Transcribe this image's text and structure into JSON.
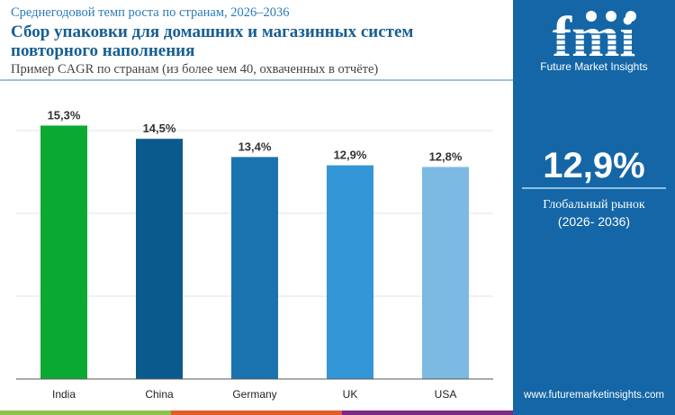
{
  "header": {
    "supertitle": "Среднегодовой темп роста по странам, 2026–2036",
    "title": "Сбор упаковки для домашних и магазинных систем повторного наполнения",
    "subtitle": "Пример CAGR по странам (из более чем 40, охваченных в отчёте)"
  },
  "sidebar": {
    "logo_text": "fmi",
    "brand": "Future Market Insights",
    "value": "12,9%",
    "label": "Глобальный рынок",
    "period": "(2026- 2036)",
    "url": "www.futuremarketinsights.com",
    "bg_color": "#1466a6"
  },
  "chart_data": {
    "type": "bar",
    "title": "",
    "xlabel": "",
    "ylabel": "",
    "categories": [
      "India",
      "China",
      "Germany",
      "UK",
      "USA"
    ],
    "values": [
      15.3,
      14.5,
      13.4,
      12.9,
      12.8
    ],
    "data_labels": [
      "15,3%",
      "14,5%",
      "13,4%",
      "12,9%",
      "12,8%"
    ],
    "colors": [
      "#0aaa32",
      "#0b5a8e",
      "#1a73ae",
      "#3396d6",
      "#7cb9e3"
    ],
    "ylim": [
      0,
      15.3
    ],
    "grid": true,
    "legend": "none"
  },
  "footer_colors": [
    "#8bc34a",
    "#e55b2b",
    "#7b2b86"
  ]
}
